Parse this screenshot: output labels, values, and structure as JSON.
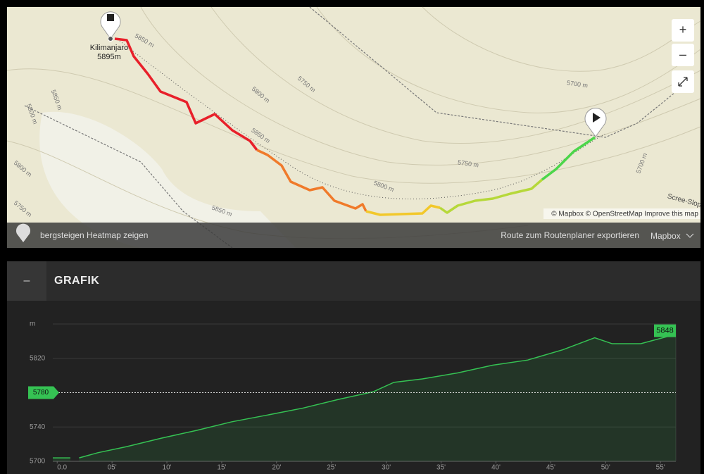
{
  "map": {
    "summit_name": "Kilimanjaro",
    "summit_elevation": "5895m",
    "contour_labels": [
      "5850 m",
      "5800 m",
      "5750 m",
      "5850 m",
      "5750 m",
      "5800 m",
      "5850 m",
      "5800 m",
      "5750 m",
      "5700 m",
      "5700 m",
      "5800 m",
      "5850 m"
    ],
    "area_label": "Scree-Slop",
    "attribution": "© Mapbox © OpenStreetMap Improve this map",
    "zoom_in": "+",
    "zoom_out": "–",
    "heatmap": "bergsteigen Heatmap zeigen",
    "export": "Route zum Routenplaner exportieren",
    "style": "Mapbox"
  },
  "section": {
    "toggle": "–",
    "title": "GRAFIK"
  },
  "chart_data": {
    "type": "area",
    "x": [
      -0.4,
      1.2,
      1.6,
      2.0,
      3.7,
      6.3,
      9.5,
      12.7,
      15.9,
      19.2,
      22.4,
      25.6,
      28.8,
      30.7,
      33.3,
      36.5,
      39.7,
      42.9,
      46.1,
      49.0,
      50.6,
      53.2,
      56.4
    ],
    "series": [
      {
        "color": "#35c253",
        "values": [
          5704,
          5704,
          null,
          5704,
          5710,
          5717,
          5727,
          5736,
          5746,
          5754,
          5762,
          5772,
          5781,
          5792,
          5796,
          5803,
          5812,
          5818,
          5830,
          5844,
          5837,
          5837,
          5848
        ]
      }
    ],
    "xlim": [
      -0.4,
      56.4
    ],
    "ylim": [
      5700,
      5860
    ],
    "xticks": [
      {
        "value": 0,
        "label": "0.0"
      },
      {
        "value": 5,
        "label": "05'"
      },
      {
        "value": 10,
        "label": "10'"
      },
      {
        "value": 15,
        "label": "15'"
      },
      {
        "value": 20,
        "label": "20'"
      },
      {
        "value": 25,
        "label": "25'"
      },
      {
        "value": 30,
        "label": "30'"
      },
      {
        "value": 35,
        "label": "35'"
      },
      {
        "value": 40,
        "label": "40'"
      },
      {
        "value": 45,
        "label": "45'"
      },
      {
        "value": 50,
        "label": "50'"
      },
      {
        "value": 55,
        "label": "55'"
      }
    ],
    "yticks": [
      5700,
      5740,
      5820,
      {
        "value": 5860,
        "label": "m"
      }
    ],
    "reference_line": 5780,
    "grid": true
  }
}
